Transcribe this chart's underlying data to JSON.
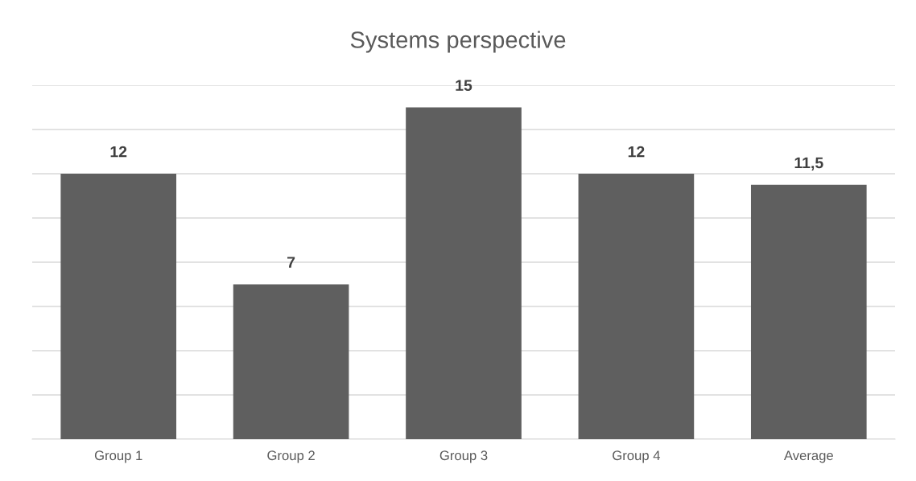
{
  "chart_data": {
    "type": "bar",
    "title": "Systems perspective",
    "categories": [
      "Group 1",
      "Group 2",
      "Group 3",
      "Group 4",
      "Average"
    ],
    "values": [
      12,
      7,
      15,
      12,
      11.5
    ],
    "value_labels": [
      "12",
      "7",
      "15",
      "12",
      "11,5"
    ],
    "color": "#5f5f5f",
    "ylim": [
      0,
      16
    ],
    "yticks": [
      {
        "value": 0,
        "label": null
      },
      {
        "value": 2,
        "label": null
      },
      {
        "value": 4,
        "label": null
      },
      {
        "value": 6,
        "label": null
      },
      {
        "value": 8,
        "label": null
      },
      {
        "value": 10,
        "label": null
      },
      {
        "value": 12,
        "label": null
      },
      {
        "value": 14,
        "label": null
      },
      {
        "value": 16,
        "label": null
      }
    ],
    "grid": "y",
    "tick_labels": "x",
    "legend": false
  }
}
